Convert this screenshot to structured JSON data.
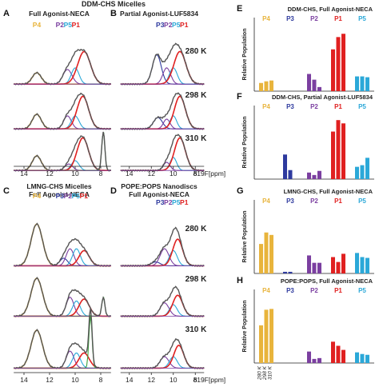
{
  "figure": {
    "header": "DDM-CHS Micelles",
    "xlabel": "δ19F[ppm]",
    "colors": {
      "P4": "#E8B43C",
      "P3": "#2E3A9E",
      "P2": "#7B3FA0",
      "P5": "#2BA8D8",
      "P1": "#E02020",
      "green": "#3CA33C",
      "data": "#555555",
      "sum": "#111111"
    },
    "temperatures": [
      "280 K",
      "298 K",
      "310 K"
    ],
    "nmr_panels": [
      {
        "letter": "A",
        "title_lines": [
          "Full Agonist-NECA"
        ],
        "peaks": [
          "P4",
          "P2",
          "P5",
          "P1"
        ],
        "label_y": 58
      },
      {
        "letter": "B",
        "title_lines": [
          "Partial Agonist-LUF5834"
        ],
        "peaks": [
          "P3",
          "P2",
          "P5",
          "P1"
        ],
        "label_y": 58
      },
      {
        "letter": "C",
        "title_lines": [
          "LMNG-CHS Micelles",
          "Full Agonist-NECA"
        ],
        "peaks": [
          "P4",
          "P3",
          "P2",
          "P5",
          "P1"
        ],
        "label_y": 272
      },
      {
        "letter": "D",
        "title_lines": [
          "POPE:POPS Nanodiscs",
          "Full Agonist-NECA"
        ],
        "peaks": [
          "P3",
          "P2",
          "P5",
          "P1"
        ],
        "label_y": 272
      }
    ],
    "ppm_ticks": [
      "14",
      "12",
      "10",
      "8"
    ]
  },
  "chart_data": [
    {
      "type": "bar",
      "letter": "E",
      "title": "DDM-CHS, Full Agonist-NECA",
      "ylabel": "Relative Population",
      "categories": [
        "P4",
        "P3",
        "P2",
        "P1",
        "P5"
      ],
      "series": [
        {
          "name": "280 K",
          "values": [
            0.1,
            null,
            0.21,
            0.51,
            0.18
          ]
        },
        {
          "name": "298 K",
          "values": [
            0.12,
            null,
            0.14,
            0.66,
            0.18
          ]
        },
        {
          "name": "310 K",
          "values": [
            0.13,
            null,
            0.05,
            0.7,
            0.17
          ]
        }
      ]
    },
    {
      "type": "bar",
      "letter": "F",
      "title": "DDM-CHS, Partial Agonist-LUF5834",
      "ylabel": "Relative Population",
      "categories": [
        "P4",
        "P3",
        "P2",
        "P1",
        "P5"
      ],
      "series": [
        {
          "name": "280 K",
          "values": [
            null,
            0.3,
            0.08,
            0.58,
            0.15
          ]
        },
        {
          "name": "298 K",
          "values": [
            null,
            0.11,
            0.05,
            0.72,
            0.17
          ]
        },
        {
          "name": "310 K",
          "values": [
            null,
            null,
            0.1,
            0.68,
            0.26
          ]
        }
      ]
    },
    {
      "type": "bar",
      "letter": "G",
      "title": "LMNG-CHS, Full Agonist-NECA",
      "ylabel": "Relative Population",
      "categories": [
        "P4",
        "P3",
        "P2",
        "P1",
        "P5"
      ],
      "series": [
        {
          "name": "280 K",
          "values": [
            0.36,
            0.02,
            0.22,
            0.2,
            0.25
          ]
        },
        {
          "name": "298 K",
          "values": [
            0.5,
            0.02,
            0.13,
            0.14,
            0.2
          ]
        },
        {
          "name": "310 K",
          "values": [
            0.47,
            null,
            0.13,
            0.24,
            0.19
          ]
        }
      ]
    },
    {
      "type": "bar",
      "letter": "H",
      "title": "POPE:POPS, Full Agonist-NECA",
      "ylabel": "Relative Population",
      "categories": [
        "P4",
        "P3",
        "P2",
        "P1",
        "P5"
      ],
      "series": [
        {
          "name": "280 K",
          "values": [
            0.46,
            null,
            0.14,
            0.26,
            0.13
          ]
        },
        {
          "name": "298 K",
          "values": [
            0.65,
            null,
            0.05,
            0.21,
            0.11
          ]
        },
        {
          "name": "310 K",
          "values": [
            0.66,
            null,
            0.06,
            0.16,
            0.1
          ]
        }
      ]
    }
  ]
}
